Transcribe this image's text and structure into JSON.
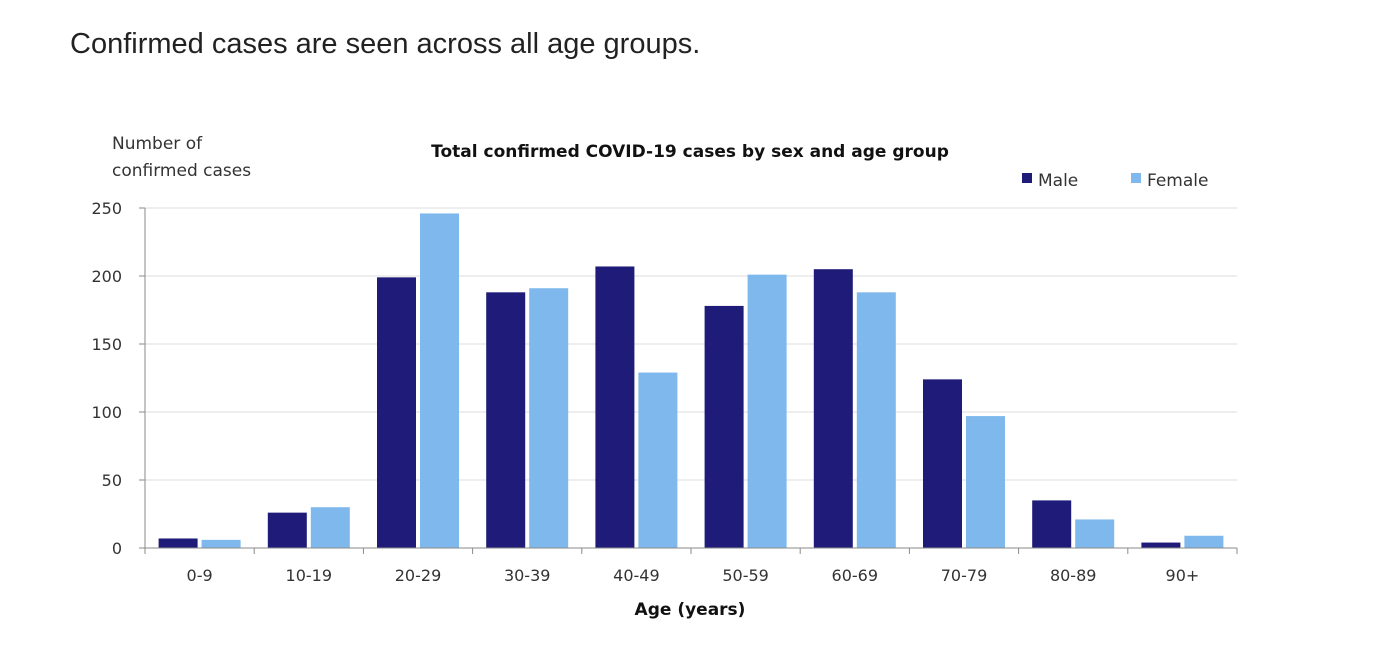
{
  "page": {
    "heading": "Confirmed cases are seen across all age groups."
  },
  "chart_data": {
    "type": "bar",
    "title": "Total confirmed COVID-19 cases by sex and age group",
    "ylabel_line1": "Number of",
    "ylabel_line2": "confirmed cases",
    "xlabel": "Age (years)",
    "categories": [
      "0-9",
      "10-19",
      "20-29",
      "30-39",
      "40-49",
      "50-59",
      "60-69",
      "70-79",
      "80-89",
      "90+"
    ],
    "series": [
      {
        "name": "Male",
        "color": "#1f1b78",
        "values": [
          7,
          26,
          199,
          188,
          207,
          178,
          205,
          124,
          35,
          4
        ]
      },
      {
        "name": "Female",
        "color": "#7eb8ec",
        "values": [
          6,
          30,
          246,
          191,
          129,
          201,
          188,
          97,
          21,
          9
        ]
      }
    ],
    "ylim": [
      0,
      250
    ],
    "yticks": [
      0,
      50,
      100,
      150,
      200,
      250
    ],
    "grid": true,
    "legend_position": "top-right"
  }
}
